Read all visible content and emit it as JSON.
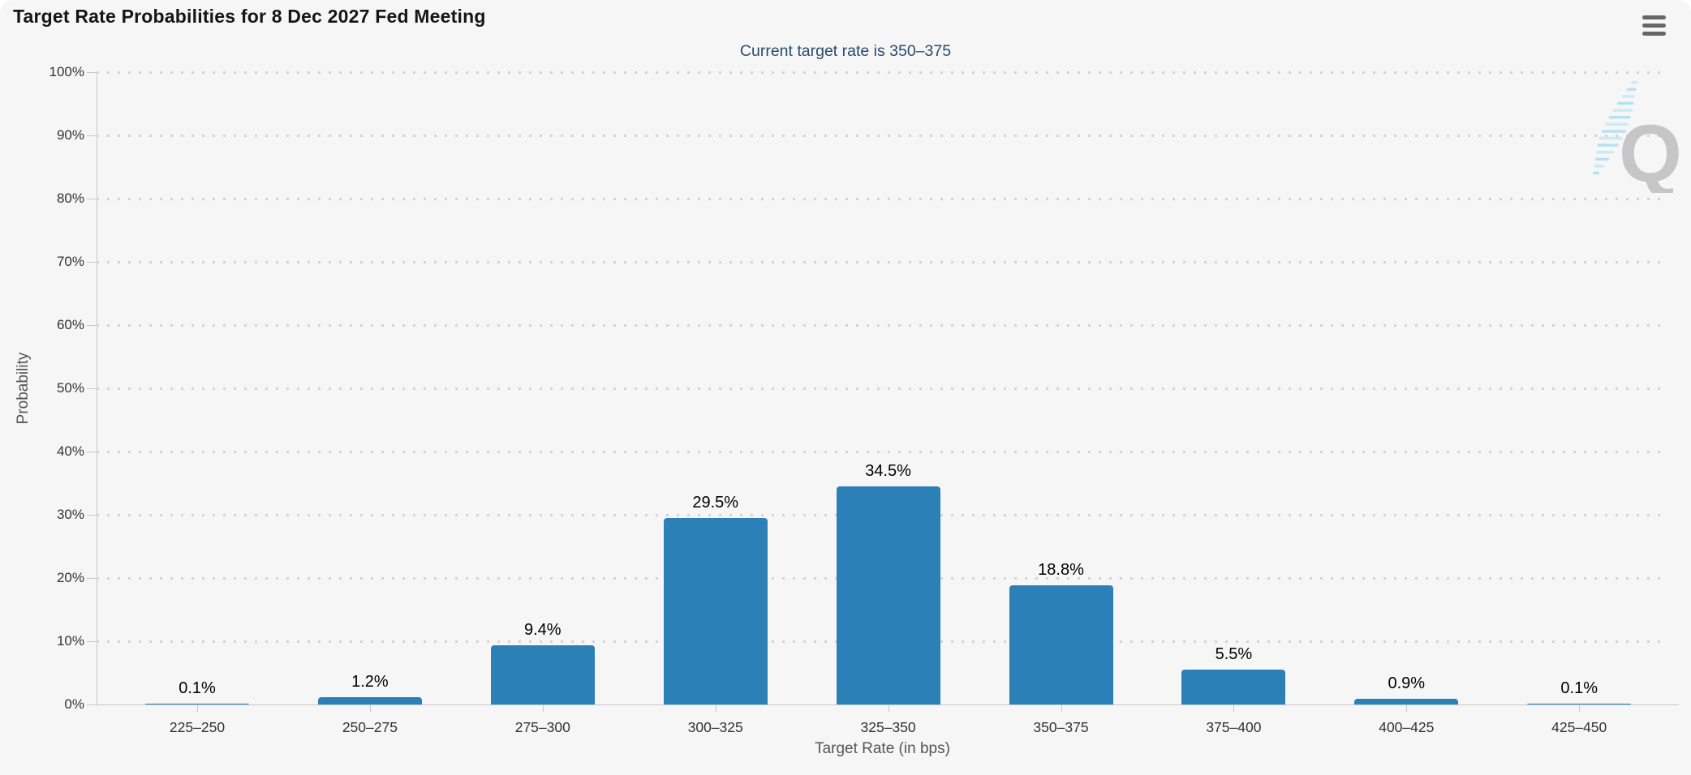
{
  "header": {
    "title": "Target Rate Probabilities for 8 Dec 2027 Fed Meeting",
    "menu_icon": "hamburger-icon"
  },
  "watermark": {
    "letter": "Q"
  },
  "chart_data": {
    "type": "bar",
    "title": "Target Rate Probabilities for 8 Dec 2027 Fed Meeting",
    "subtitle": "Current target rate is 350–375",
    "categories": [
      "225–250",
      "250–275",
      "275–300",
      "300–325",
      "325–350",
      "350–375",
      "375–400",
      "400–425",
      "425–450"
    ],
    "values": [
      0.1,
      1.2,
      9.4,
      29.5,
      34.5,
      18.8,
      5.5,
      0.9,
      0.1
    ],
    "value_labels": [
      "0.1%",
      "1.2%",
      "9.4%",
      "29.5%",
      "34.5%",
      "18.8%",
      "5.5%",
      "0.9%",
      "0.1%"
    ],
    "xlabel": "Target Rate (in bps)",
    "ylabel": "Probability",
    "ylim": [
      0,
      100
    ],
    "y_tick_step": 10,
    "y_tick_labels": [
      "0%",
      "10%",
      "20%",
      "30%",
      "40%",
      "50%",
      "60%",
      "70%",
      "80%",
      "90%",
      "100%"
    ],
    "grid": "dotted-horizontal",
    "legend_position": "none",
    "colors": {
      "bar": "#2b80b8",
      "subtitle_text": "#274b6d",
      "axis_line": "#c8c8c8",
      "grid_dot": "#d4d4d4",
      "tick_label": "#333333",
      "axis_title": "#555555",
      "background": "#f6f6f6",
      "watermark_gray": "#bfbfbf",
      "watermark_blue": "#a6dcf5"
    }
  }
}
